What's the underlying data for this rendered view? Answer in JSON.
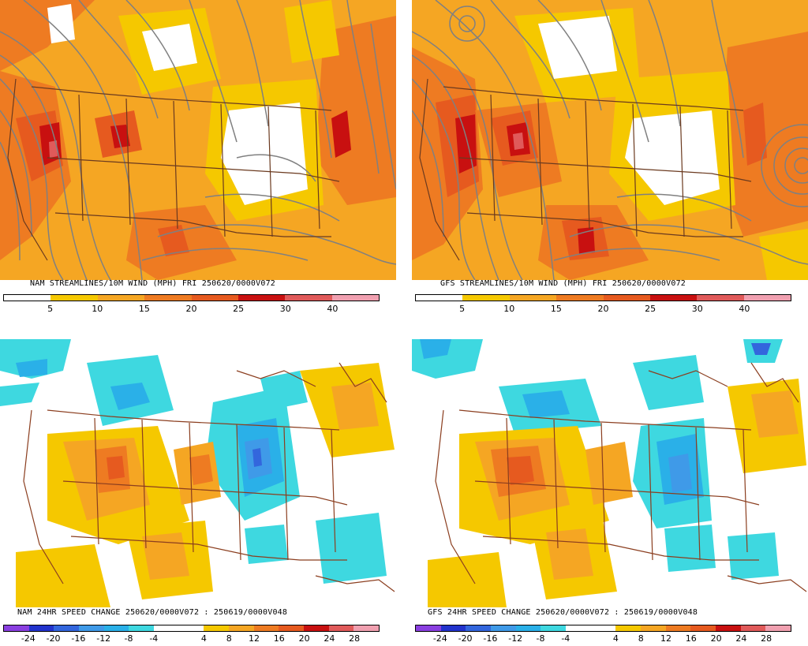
{
  "panels": [
    {
      "id": "nam-streamlines",
      "title": "NAM STREAMLINES/10M WIND (MPH)  FRI 250620/0000V072",
      "kind": "speed",
      "colorbar": {
        "colors": [
          "#ffffff",
          "#f5c800",
          "#f5a623",
          "#ee7b22",
          "#e65a1f",
          "#c81010",
          "#e05a5a",
          "#f0a0b0"
        ],
        "labels": [
          "5",
          "10",
          "15",
          "20",
          "25",
          "30",
          "40"
        ]
      }
    },
    {
      "id": "gfs-streamlines",
      "title": "GFS STREAMLINES/10M WIND (MPH)  FRI 250620/0000V072",
      "kind": "speed",
      "colorbar": {
        "colors": [
          "#ffffff",
          "#f5c800",
          "#f5a623",
          "#ee7b22",
          "#e65a1f",
          "#c81010",
          "#e05a5a",
          "#f0a0b0"
        ],
        "labels": [
          "5",
          "10",
          "15",
          "20",
          "25",
          "30",
          "40"
        ]
      }
    },
    {
      "id": "nam-change",
      "title": "NAM 24HR SPEED CHANGE 250620/0000V072 : 250619/0000V048",
      "kind": "change",
      "colorbar": {
        "colors": [
          "#8a3fe0",
          "#2233cc",
          "#3366dd",
          "#3f9ae8",
          "#2ab0e8",
          "#3ed8e0",
          "#ffffff",
          "#ffffff",
          "#f5c800",
          "#f5a623",
          "#ee7b22",
          "#e65a1f",
          "#c81010",
          "#e05a5a",
          "#f0a0b0"
        ],
        "labels": [
          "-24",
          "-20",
          "-16",
          "-12",
          "-8",
          "-4",
          "4",
          "8",
          "12",
          "16",
          "20",
          "24",
          "28"
        ]
      }
    },
    {
      "id": "gfs-change",
      "title": "GFS 24HR SPEED CHANGE 250620/0000V072 : 250619/0000V048",
      "kind": "change",
      "colorbar": {
        "colors": [
          "#8a3fe0",
          "#2233cc",
          "#3366dd",
          "#3f9ae8",
          "#2ab0e8",
          "#3ed8e0",
          "#ffffff",
          "#ffffff",
          "#f5c800",
          "#f5a623",
          "#ee7b22",
          "#e65a1f",
          "#c81010",
          "#e05a5a",
          "#f0a0b0"
        ],
        "labels": [
          "-24",
          "-20",
          "-16",
          "-12",
          "-8",
          "-4",
          "4",
          "8",
          "12",
          "16",
          "20",
          "24",
          "28"
        ]
      }
    }
  ]
}
